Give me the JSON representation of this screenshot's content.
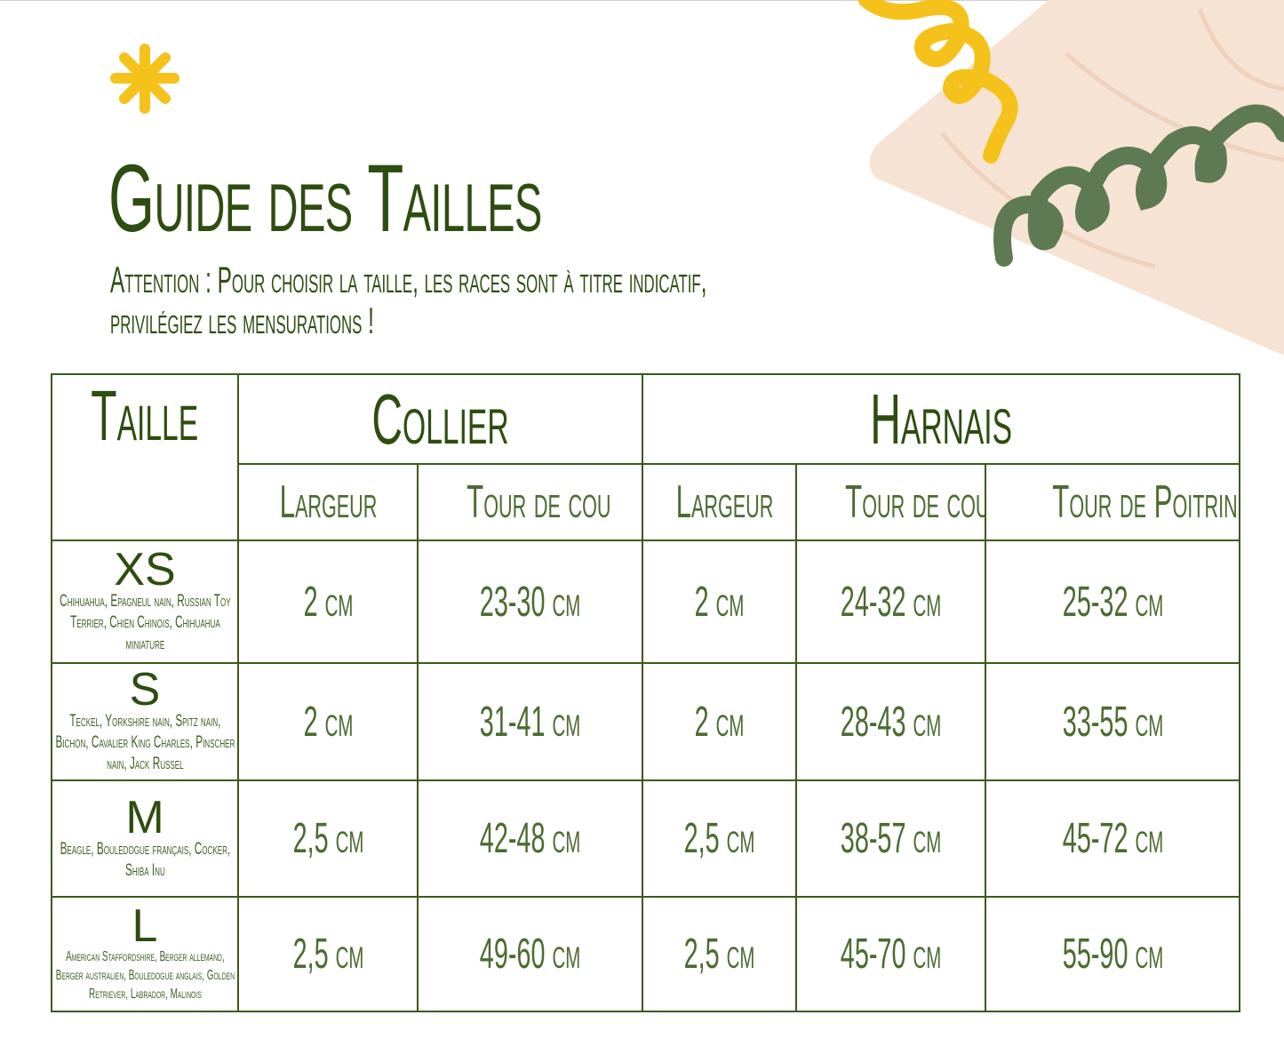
{
  "title": "Guide des Tailles",
  "subtitle_line1": "Attention : Pour choisir la taille, les races sont à titre indicatif,",
  "subtitle_line2": "privilégiez les mensurations !",
  "colors": {
    "text": "#2e4d10",
    "accent_yellow": "#f5c21b",
    "accent_green": "#5e7a52",
    "peach": "#f6e3d3"
  },
  "table": {
    "header": {
      "taille": "Taille",
      "collier": "Collier",
      "harnais": "Harnais"
    },
    "subheader": [
      "Largeur",
      "Tour de cou",
      "Largeur",
      "Tour de cou",
      "Tour de Poitrine"
    ],
    "rows": [
      {
        "size": "XS",
        "breeds": "Chihuahua, Epagneul nain, Russian Toy Terrier, Chien Chinois, Chihuahua miniature",
        "values": [
          "2 cm",
          "23-30 cm",
          "2 cm",
          "24-32 cm",
          "25-32 cm"
        ]
      },
      {
        "size": "S",
        "breeds": "Teckel, Yorkshire nain, Spitz nain, Bichon, Cavalier King Charles, Pinscher nain, Jack Russel",
        "values": [
          "2 cm",
          "31-41 cm",
          "2 cm",
          "28-43 cm",
          "33-55 cm"
        ]
      },
      {
        "size": "M",
        "breeds": "Beagle, Bouledogue français, Cocker, Shiba Inu",
        "values": [
          "2,5 cm",
          "42-48 cm",
          "2,5 cm",
          "38-57 cm",
          "45-72 cm"
        ]
      },
      {
        "size": "L",
        "breeds": "American Staffordshire, Berger allemand, Berger australien, Bouledogue anglais, Golden Retriever, Labrador, Malinois",
        "values": [
          "2,5 cm",
          "49-60 cm",
          "2,5 cm",
          "45-70 cm",
          "55-90 cm"
        ]
      }
    ]
  }
}
